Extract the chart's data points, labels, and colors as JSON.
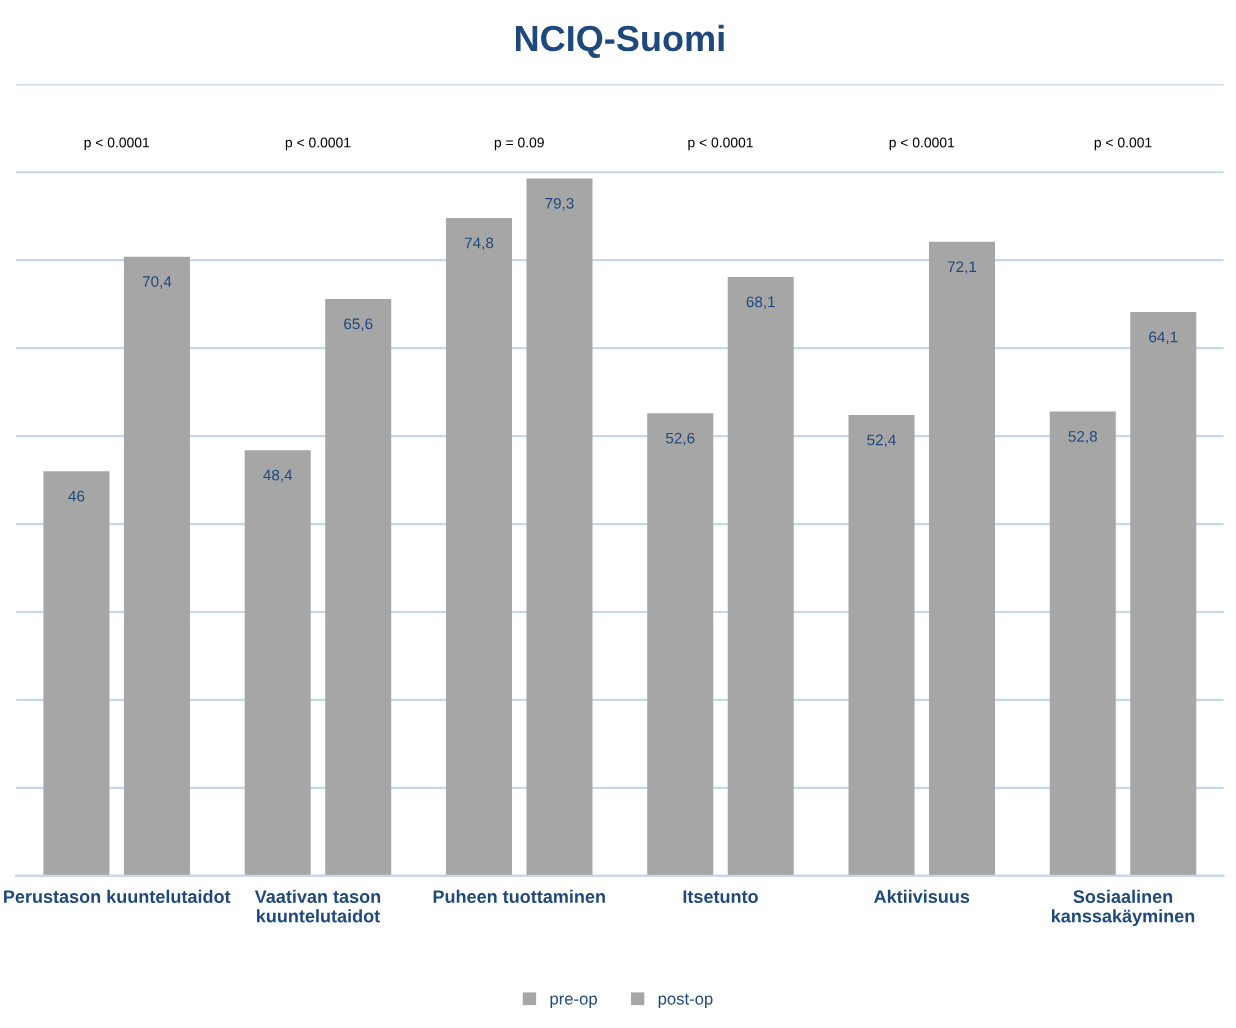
{
  "chart_data": {
    "type": "bar",
    "title": "NCIQ-Suomi",
    "categories": [
      "Perustason kuuntelutaidot",
      "Vaativan tason\nkuuntelutaidot",
      "Puheen tuottaminen",
      "Itsetunto",
      "Aktiivisuus",
      "Sosiaalinen\nkanssakäyminen"
    ],
    "series": [
      {
        "name": "pre-op",
        "color": "#a6a6a6",
        "values": [
          46,
          48.4,
          74.8,
          52.6,
          52.4,
          52.8
        ],
        "value_labels": [
          "46",
          "48,4",
          "74,8",
          "52,6",
          "52,4",
          "52,8"
        ]
      },
      {
        "name": "post-op",
        "color": "#a6a6a6",
        "values": [
          70.4,
          65.6,
          79.3,
          68.1,
          72.1,
          64.1
        ],
        "value_labels": [
          "70,4",
          "65,6",
          "79,3",
          "68,1",
          "72,1",
          "64,1"
        ]
      }
    ],
    "ylim": [
      0,
      90
    ],
    "yticks": [
      {
        "value": 0,
        "label": null
      },
      {
        "value": 10,
        "label": null
      },
      {
        "value": 20,
        "label": null
      },
      {
        "value": 30,
        "label": null
      },
      {
        "value": 40,
        "label": null
      },
      {
        "value": 50,
        "label": null
      },
      {
        "value": 60,
        "label": null
      },
      {
        "value": 70,
        "label": null
      },
      {
        "value": 80,
        "label": null
      },
      {
        "value": 90,
        "label": null
      }
    ],
    "tick_labels": "x",
    "grid": "y",
    "legend": "bottom",
    "annotations": [
      "p < 0.0001",
      "p < 0.0001",
      "p = 0.09",
      "p < 0.0001",
      "p < 0.0001",
      "p < 0.001"
    ]
  }
}
